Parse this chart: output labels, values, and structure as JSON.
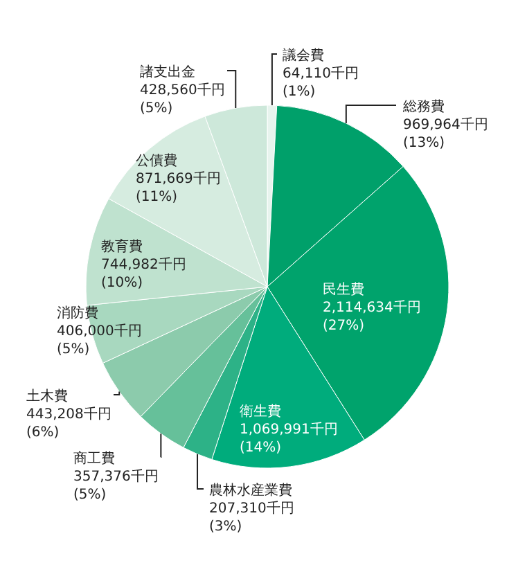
{
  "chart_data": {
    "type": "pie",
    "categories": [
      "議会費",
      "総務費",
      "民生費",
      "衛生費",
      "農林水産業費",
      "商工費",
      "土木費",
      "消防費",
      "教育費",
      "公債費",
      "諸支出金"
    ],
    "values": [
      64110,
      969964,
      2114634,
      1069991,
      207310,
      357376,
      443208,
      406000,
      744982,
      871669,
      428560
    ],
    "value_labels": [
      "64,110千円\n(1%)",
      "969,964千円\n(13%)",
      "2,114,634千円\n(27%)",
      "1,069,991千円\n(14%)",
      "207,310千円\n(3%)",
      "357,376千円\n(5%)",
      "443,208千円\n(6%)",
      "406,000千円\n(5%)",
      "744,982千円\n(10%)",
      "871,669千円\n(11%)",
      "428,560千円\n(5%)"
    ],
    "colors": [
      "#e8f4ee",
      "#00a06a",
      "#00a36c",
      "#00ac7c",
      "#2db287",
      "#66c09a",
      "#8ccbac",
      "#a8d8bf",
      "#bfe2cf",
      "#d6ece0",
      "#cde8da"
    ],
    "legend": false
  }
}
